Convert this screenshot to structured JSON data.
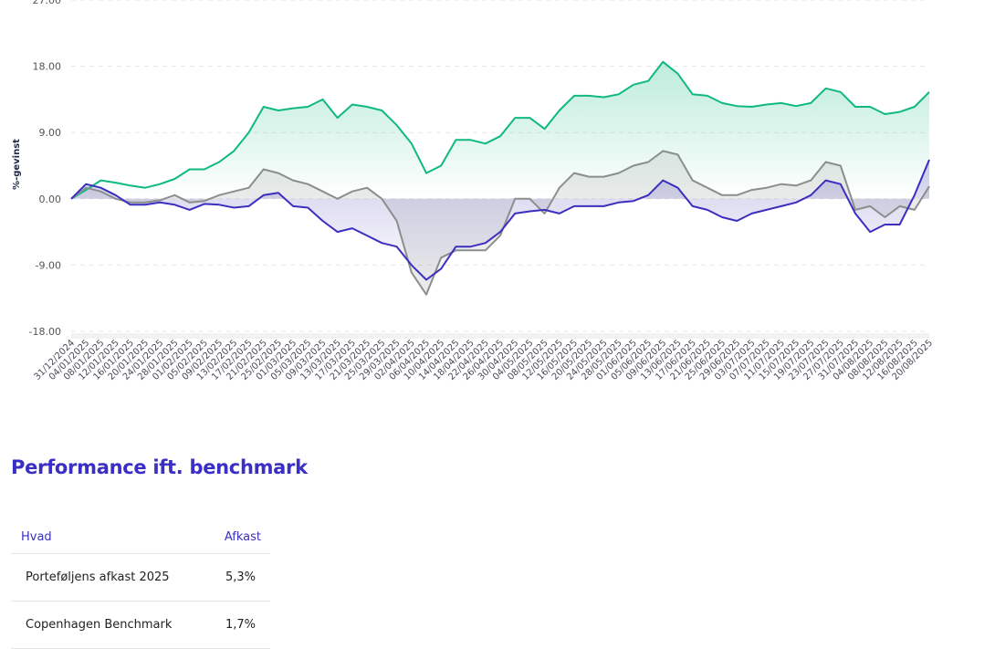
{
  "chart_data": {
    "type": "line",
    "ylabel": "%-gevinst",
    "ylim": [
      -18,
      27
    ],
    "yticks": [
      "27.00",
      "18.00",
      "9.00",
      "0.00",
      "-9.00",
      "-18.00"
    ],
    "ytick_values": [
      27,
      18,
      9,
      0,
      -9,
      -18
    ],
    "grid": true,
    "x": [
      "31/12/2024",
      "04/01/2025",
      "08/01/2025",
      "12/01/2025",
      "16/01/2025",
      "20/01/2025",
      "24/01/2025",
      "28/01/2025",
      "01/02/2025",
      "05/02/2025",
      "09/02/2025",
      "13/02/2025",
      "17/02/2025",
      "21/02/2025",
      "25/02/2025",
      "01/03/2025",
      "05/03/2025",
      "09/03/2025",
      "13/03/2025",
      "17/03/2025",
      "21/03/2025",
      "25/03/2025",
      "29/03/2025",
      "02/04/2025",
      "06/04/2025",
      "10/04/2025",
      "14/04/2025",
      "18/04/2025",
      "22/04/2025",
      "26/04/2025",
      "30/04/2025",
      "04/05/2025",
      "08/05/2025",
      "12/05/2025",
      "16/05/2025",
      "20/05/2025",
      "24/05/2025",
      "28/05/2025",
      "01/06/2025",
      "05/06/2025",
      "09/06/2025",
      "13/06/2025",
      "17/06/2025",
      "21/06/2025",
      "25/06/2025",
      "29/06/2025",
      "03/07/2025",
      "07/07/2025",
      "11/07/2025",
      "15/07/2025",
      "19/07/2025",
      "23/07/2025",
      "27/07/2025",
      "31/07/2025",
      "04/08/2025",
      "08/08/2025",
      "12/08/2025",
      "16/08/2025",
      "20/08/2025"
    ],
    "series": [
      {
        "name": "green-series",
        "color": "#10b981",
        "values": [
          0,
          1.2,
          2.5,
          2.2,
          1.8,
          1.5,
          2,
          2.7,
          4,
          4,
          5,
          6.5,
          9,
          12.5,
          12,
          12.3,
          12.5,
          13.5,
          11,
          12.8,
          12.5,
          12,
          10,
          7.5,
          3.5,
          4.5,
          8,
          8,
          7.5,
          8.5,
          11,
          11,
          9.5,
          12,
          14,
          14,
          13.8,
          14.2,
          15.5,
          16,
          18.6,
          17,
          14.2,
          14,
          13,
          12.6,
          12.5,
          12.8,
          13,
          12.6,
          13,
          15,
          14.5,
          12.5,
          12.5,
          11.5,
          11.8,
          12.5,
          14.5
        ]
      },
      {
        "name": "gray-series",
        "color": "#8a8f8c",
        "values": [
          0,
          1.5,
          1,
          0,
          -0.5,
          -0.5,
          -0.2,
          0.5,
          -0.5,
          -0.3,
          0.5,
          1,
          1.5,
          4,
          3.5,
          2.5,
          2,
          1,
          0,
          1,
          1.5,
          0,
          -3,
          -10,
          -13,
          -8,
          -7,
          -7,
          -7,
          -5,
          0,
          0,
          -2,
          1.5,
          3.5,
          3,
          3,
          3.5,
          4.5,
          5,
          6.5,
          6,
          2.5,
          1.5,
          0.5,
          0.5,
          1.2,
          1.5,
          2,
          1.8,
          2.5,
          5,
          4.5,
          -1.5,
          -1,
          -2.5,
          -1,
          -1.5,
          1.7
        ]
      },
      {
        "name": "purple-series",
        "color": "#3b2fc0",
        "values": [
          0,
          2,
          1.5,
          0.5,
          -0.8,
          -0.8,
          -0.5,
          -0.8,
          -1.5,
          -0.7,
          -0.8,
          -1.2,
          -1,
          0.5,
          0.8,
          -1,
          -1.2,
          -3,
          -4.5,
          -4,
          -5,
          -6,
          -6.5,
          -9,
          -11,
          -9.5,
          -6.5,
          -6.5,
          -6,
          -4.5,
          -2,
          -1.7,
          -1.5,
          -2,
          -1,
          -1,
          -1,
          -0.5,
          -0.3,
          0.5,
          2.5,
          1.5,
          -1,
          -1.5,
          -2.5,
          -3,
          -2,
          -1.5,
          -1,
          -0.5,
          0.5,
          2.5,
          2,
          -2,
          -4.5,
          -3.5,
          -3.5,
          0.5,
          5.3
        ]
      }
    ]
  },
  "section": {
    "title": "Performance ift. benchmark"
  },
  "table": {
    "headers": [
      "Hvad",
      "Afkast"
    ],
    "rows": [
      [
        "Porteføljens afkast 2025",
        "5,3%"
      ],
      [
        "Copenhagen Benchmark",
        "1,7%"
      ]
    ]
  }
}
